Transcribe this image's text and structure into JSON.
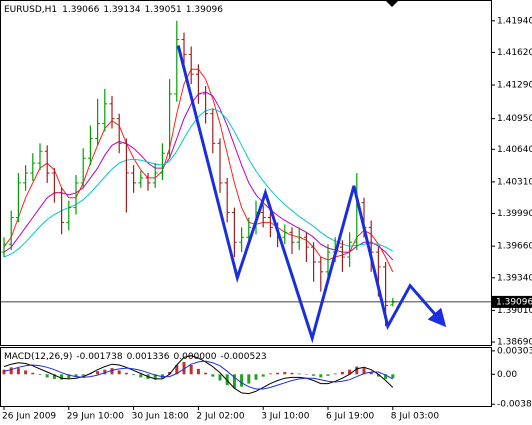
{
  "chart_data": {
    "type": "ohlc",
    "title": "EURUSD,H1",
    "categories": [
      "26 Jun 2009",
      null,
      null,
      null,
      null,
      null,
      null,
      null,
      null,
      "29 Jun 10:00",
      null,
      null,
      null,
      null,
      null,
      null,
      null,
      null,
      "30 Jun 18:00",
      null,
      null,
      null,
      null,
      null,
      null,
      null,
      null,
      "2 Jul 02:00",
      null,
      null,
      null,
      null,
      null,
      null,
      null,
      null,
      "3 Jul 10:00",
      null,
      null,
      null,
      null,
      null,
      null,
      null,
      null,
      "6 Jul 19:00",
      null,
      null,
      null,
      null,
      null,
      null,
      null,
      null,
      "8 Jul 03:00"
    ],
    "open": [
      1.396,
      1.3968,
      1.3995,
      1.403,
      1.404,
      1.405,
      1.4062,
      1.404,
      1.402,
      1.399,
      1.4005,
      1.403,
      1.4055,
      1.4075,
      1.409,
      1.411,
      1.4095,
      1.407,
      1.404,
      1.403,
      1.4035,
      1.403,
      1.404,
      1.406,
      1.412,
      1.4175,
      1.416,
      1.414,
      1.412,
      1.41,
      1.407,
      1.403,
      1.4,
      1.397,
      1.3975,
      1.3985,
      1.4,
      1.3995,
      1.3985,
      1.3975,
      1.398,
      1.397,
      1.3975,
      1.3965,
      1.395,
      1.394,
      1.396,
      1.3965,
      1.3955,
      1.397,
      1.401,
      1.3985,
      1.396,
      1.3945,
      1.39066
    ],
    "high": [
      1.3975,
      1.4002,
      1.404,
      1.4048,
      1.406,
      1.407,
      1.4068,
      1.4045,
      1.4025,
      1.4012,
      1.4038,
      1.4065,
      1.4088,
      1.4115,
      1.4125,
      1.4118,
      1.41,
      1.4075,
      1.4048,
      1.4042,
      1.404,
      1.405,
      1.407,
      1.4135,
      1.4194,
      1.4182,
      1.4168,
      1.415,
      1.4128,
      1.4105,
      1.4075,
      1.4035,
      1.4005,
      1.3985,
      1.3995,
      1.4012,
      1.4008,
      1.4,
      1.399,
      1.3988,
      1.3985,
      1.3985,
      1.398,
      1.397,
      1.3955,
      1.3968,
      1.3975,
      1.3972,
      1.398,
      1.404,
      1.4015,
      1.3992,
      1.3965,
      1.395,
      1.39134
    ],
    "low": [
      1.3955,
      1.3962,
      1.399,
      1.4022,
      1.4032,
      1.4043,
      1.403,
      1.401,
      1.3978,
      1.3982,
      1.3998,
      1.4025,
      1.4048,
      1.4068,
      1.4082,
      1.4085,
      1.406,
      1.4,
      1.402,
      1.4025,
      1.4022,
      1.4025,
      1.4033,
      1.4055,
      1.4112,
      1.415,
      1.413,
      1.411,
      1.409,
      1.406,
      1.402,
      1.399,
      1.3955,
      1.396,
      1.3968,
      1.3978,
      1.3985,
      1.3975,
      1.3965,
      1.3968,
      1.3958,
      1.3962,
      1.395,
      1.393,
      1.392,
      1.3932,
      1.395,
      1.394,
      1.3945,
      1.3962,
      1.3975,
      1.394,
      1.3915,
      1.3885,
      1.39051
    ],
    "close": [
      1.3968,
      1.3995,
      1.403,
      1.404,
      1.405,
      1.4062,
      1.404,
      1.402,
      1.399,
      1.4005,
      1.403,
      1.4055,
      1.4075,
      1.409,
      1.411,
      1.4095,
      1.407,
      1.404,
      1.403,
      1.4035,
      1.403,
      1.404,
      1.406,
      1.412,
      1.4175,
      1.416,
      1.414,
      1.412,
      1.41,
      1.407,
      1.403,
      1.4,
      1.397,
      1.3975,
      1.3985,
      1.4,
      1.3995,
      1.3985,
      1.3975,
      1.398,
      1.397,
      1.3975,
      1.3965,
      1.395,
      1.394,
      1.396,
      1.3965,
      1.3955,
      1.397,
      1.401,
      1.3985,
      1.396,
      1.3945,
      1.3906,
      1.39096
    ],
    "up_color": "#00a000",
    "down_color": "#a02020",
    "ylim": [
      1.3866,
      1.4213
    ],
    "yticks": [
      {
        "value": 1.4194,
        "label": "1.41940"
      },
      {
        "value": 1.4162,
        "label": "1.41620"
      },
      {
        "value": 1.4129,
        "label": "1.41290"
      },
      {
        "value": 1.4095,
        "label": "1.40950"
      },
      {
        "value": 1.4064,
        "label": "1.40640"
      },
      {
        "value": 1.4031,
        "label": "1.40310"
      },
      {
        "value": 1.3999,
        "label": "1.39990"
      },
      {
        "value": 1.3966,
        "label": "1.39660"
      },
      {
        "value": 1.3934,
        "label": "1.39340"
      },
      {
        "value": 1.3901,
        "label": "1.39010"
      },
      {
        "value": 1.3869,
        "label": "1.38690"
      }
    ],
    "moving_averages": [
      {
        "color": "#ff2020",
        "values": [
          1.3965,
          1.3975,
          1.3995,
          1.4015,
          1.403,
          1.4045,
          1.405,
          1.4043,
          1.4025,
          1.4015,
          1.4015,
          1.403,
          1.405,
          1.4068,
          1.4085,
          1.4093,
          1.4088,
          1.407,
          1.4055,
          1.4043,
          1.4035,
          1.4035,
          1.4042,
          1.4065,
          1.41,
          1.413,
          1.4145,
          1.4145,
          1.4135,
          1.4115,
          1.409,
          1.406,
          1.403,
          1.4005,
          1.399,
          1.3988,
          1.399,
          1.399,
          1.3985,
          1.398,
          1.3977,
          1.3975,
          1.3972,
          1.3965,
          1.3955,
          1.3952,
          1.3955,
          1.3957,
          1.396,
          1.3975,
          1.3982,
          1.3978,
          1.3968,
          1.3955,
          1.394
        ]
      },
      {
        "color": "#c000c0",
        "values": [
          1.396,
          1.3965,
          1.3975,
          1.3985,
          1.3995,
          1.4005,
          1.4015,
          1.402,
          1.402,
          1.4018,
          1.402,
          1.4025,
          1.4035,
          1.4045,
          1.4058,
          1.4068,
          1.4072,
          1.407,
          1.4065,
          1.4058,
          1.405,
          1.4045,
          1.4045,
          1.4055,
          1.4075,
          1.4095,
          1.411,
          1.412,
          1.4122,
          1.4118,
          1.4105,
          1.4088,
          1.4068,
          1.4048,
          1.403,
          1.4018,
          1.401,
          1.4003,
          1.3997,
          1.3992,
          1.3988,
          1.3984,
          1.398,
          1.3975,
          1.3968,
          1.3964,
          1.3962,
          1.396,
          1.396,
          1.3966,
          1.397,
          1.397,
          1.3966,
          1.396,
          1.3952
        ]
      },
      {
        "color": "#00c8c8",
        "values": [
          1.3955,
          1.3958,
          1.3963,
          1.397,
          1.3978,
          1.3986,
          1.3993,
          1.3998,
          1.4002,
          1.4005,
          1.4008,
          1.4013,
          1.402,
          1.4028,
          1.4036,
          1.4044,
          1.405,
          1.4053,
          1.4054,
          1.4053,
          1.4051,
          1.4049,
          1.4048,
          1.4052,
          1.4062,
          1.4075,
          1.4087,
          1.4097,
          1.4103,
          1.4105,
          1.4102,
          1.4094,
          1.4082,
          1.4068,
          1.4054,
          1.4042,
          1.4032,
          1.4023,
          1.4015,
          1.4008,
          1.4002,
          1.3996,
          1.3991,
          1.3986,
          1.398,
          1.3975,
          1.3971,
          1.3968,
          1.3966,
          1.3967,
          1.3968,
          1.3969,
          1.3968,
          1.3965,
          1.3961
        ]
      }
    ],
    "zigzag": {
      "color": "#1a2ee0",
      "x": [
        24.2,
        32.4,
        36.3,
        42.8,
        48.6,
        53.3,
        56.4,
        60.6
      ],
      "y": [
        1.4169,
        1.3934,
        1.402,
        1.3873,
        1.4027,
        1.3885,
        1.3926,
        1.3891
      ]
    },
    "macd": {
      "title": "MACD(12,26,9)",
      "header_values": [
        -0.001738,
        0.001336,
        {
          "value": 0,
          "label": "0.000000"
        },
        -0.000523
      ],
      "ylim": [
        -0.0041,
        0.0034
      ],
      "yticks": [
        0.00303,
        {
          "value": 0,
          "label": "0.00"
        },
        -0.00387
      ],
      "up_color": "#c03030",
      "down_color": "#20a020",
      "histogram": [
        0.0006,
        0.0009,
        0.0008,
        0.0005,
        0.0002,
        -0.0001,
        -0.0004,
        -0.0006,
        -0.0007,
        -0.0005,
        -0.0003,
        -0.0002,
        0.0001,
        0.0004,
        0.0006,
        0.0008,
        0.0005,
        0.0002,
        -0.0001,
        -0.0004,
        -0.0006,
        -0.0007,
        -0.0005,
        0.0003,
        0.0012,
        0.0016,
        0.0012,
        0.0007,
        0.0002,
        -0.0003,
        -0.0008,
        -0.0014,
        -0.0018,
        -0.0016,
        -0.0012,
        -0.0007,
        -0.0003,
        0.0001,
        0.0002,
        0.0003,
        0.0002,
        0.0001,
        0.0,
        -0.0002,
        -0.0004,
        -0.0002,
        0.0001,
        0.0003,
        0.0006,
        0.001,
        0.0008,
        0.0003,
        -0.0003,
        -0.0006,
        -0.0005
      ],
      "main": {
        "color": "#000000",
        "values": [
          0.001,
          0.0013,
          0.0015,
          0.0014,
          0.0011,
          0.0007,
          0.0003,
          -0.0001,
          -0.0005,
          -0.0006,
          -0.0005,
          -0.0003,
          0.0001,
          0.0006,
          0.001,
          0.0013,
          0.0012,
          0.0009,
          0.0005,
          0.0001,
          -0.0003,
          -0.0006,
          -0.0006,
          0.0,
          0.0012,
          0.0022,
          0.0024,
          0.0021,
          0.0016,
          0.001,
          0.0002,
          -0.0008,
          -0.0018,
          -0.0024,
          -0.0025,
          -0.0022,
          -0.0017,
          -0.0012,
          -0.0008,
          -0.0005,
          -0.0004,
          -0.0004,
          -0.0005,
          -0.0008,
          -0.0012,
          -0.0012,
          -0.0009,
          -0.0005,
          0.0,
          0.0007,
          0.0009,
          0.0006,
          0.0,
          -0.0008,
          -0.0017
        ]
      },
      "signal": {
        "color": "#1a2ee0",
        "values": [
          0.0004,
          0.0006,
          0.0009,
          0.0011,
          0.0012,
          0.0011,
          0.0009,
          0.0006,
          0.0002,
          -0.0001,
          -0.0003,
          -0.0004,
          -0.0003,
          -0.0001,
          0.0002,
          0.0005,
          0.0007,
          0.0008,
          0.0007,
          0.0005,
          0.0002,
          -0.0001,
          -0.0003,
          -0.0003,
          0.0001,
          0.0007,
          0.0013,
          0.0016,
          0.0017,
          0.0015,
          0.0011,
          0.0004,
          -0.0004,
          -0.0011,
          -0.0016,
          -0.0019,
          -0.0019,
          -0.0017,
          -0.0014,
          -0.0011,
          -0.0008,
          -0.0006,
          -0.0005,
          -0.0005,
          -0.0007,
          -0.0009,
          -0.001,
          -0.0009,
          -0.0007,
          -0.0003,
          0.0001,
          0.0003,
          0.0003,
          -0.0001,
          -0.0006
        ]
      }
    }
  }
}
